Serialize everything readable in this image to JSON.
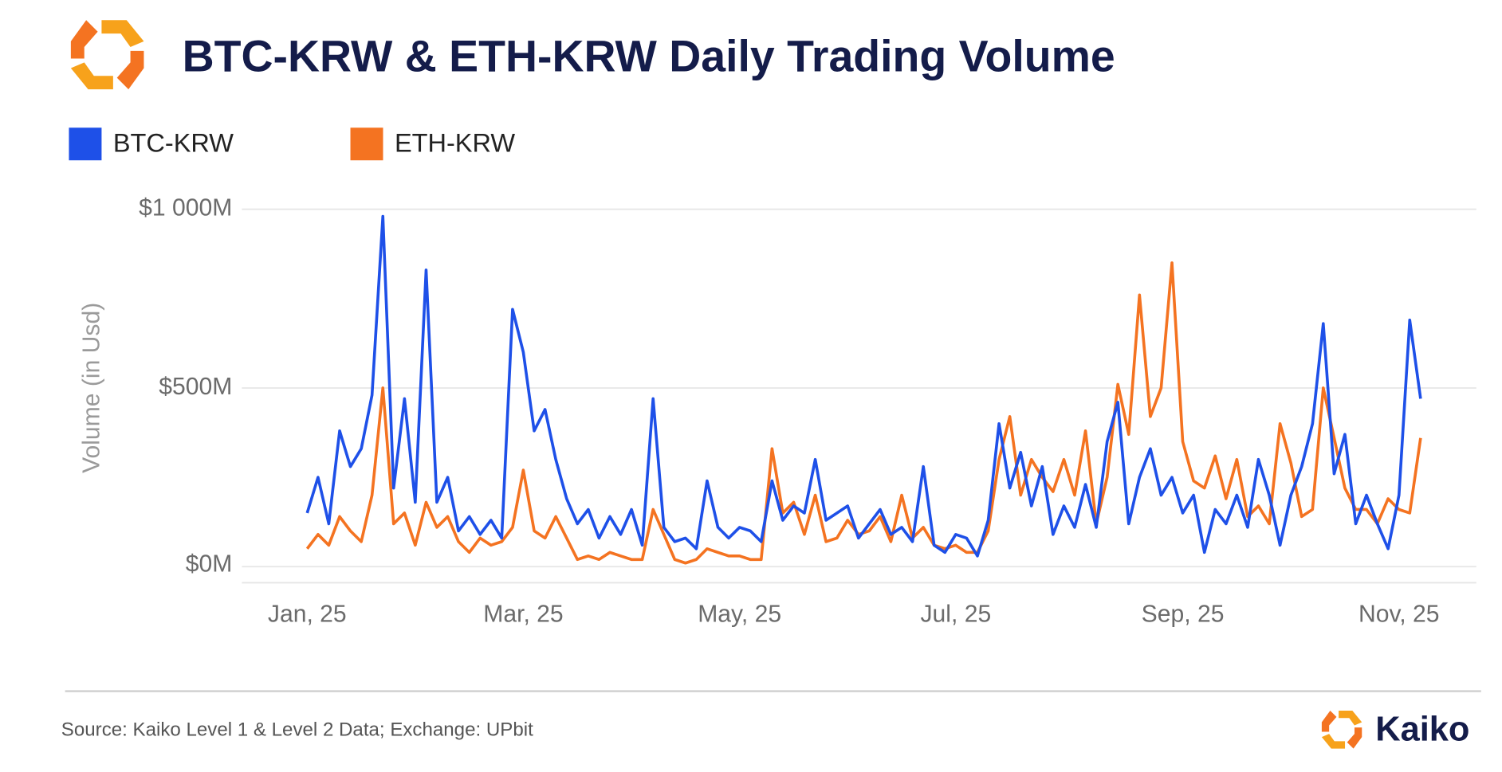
{
  "chart_data": {
    "type": "line",
    "title": "BTC-KRW & ETH-KRW Daily Trading Volume",
    "y_axis_label": "Volume (in Usd)",
    "source": "Source: Kaiko Level 1 & Level 2 Data; Exchange: UPbit",
    "brand": "Kaiko",
    "categories": [
      "Jan, 25",
      null,
      null,
      null,
      null,
      null,
      null,
      null,
      null,
      null,
      null,
      null,
      null,
      null,
      null,
      null,
      null,
      null,
      null,
      null,
      "Mar, 25",
      null,
      null,
      null,
      null,
      null,
      null,
      null,
      null,
      null,
      null,
      null,
      null,
      null,
      null,
      null,
      null,
      null,
      null,
      null,
      "May, 25",
      null,
      null,
      null,
      null,
      null,
      null,
      null,
      null,
      null,
      null,
      null,
      null,
      null,
      null,
      null,
      null,
      null,
      null,
      null,
      "Jul, 25",
      null,
      null,
      null,
      null,
      null,
      null,
      null,
      null,
      null,
      null,
      null,
      null,
      null,
      null,
      null,
      null,
      null,
      null,
      null,
      null,
      "Sep, 25",
      null,
      null,
      null,
      null,
      null,
      null,
      null,
      null,
      null,
      null,
      null,
      null,
      null,
      null,
      null,
      null,
      null,
      null,
      null,
      "Nov, 25",
      null,
      null
    ],
    "series": [
      {
        "name": "BTC-KRW",
        "color": "#1e50e8",
        "values": [
          150,
          250,
          120,
          380,
          280,
          330,
          480,
          980,
          220,
          470,
          180,
          830,
          180,
          250,
          100,
          140,
          90,
          130,
          80,
          720,
          600,
          380,
          440,
          300,
          190,
          120,
          160,
          80,
          140,
          90,
          160,
          60,
          470,
          110,
          70,
          80,
          50,
          240,
          110,
          80,
          110,
          100,
          70,
          240,
          130,
          170,
          150,
          300,
          130,
          150,
          170,
          80,
          120,
          160,
          90,
          110,
          70,
          280,
          60,
          40,
          90,
          80,
          30,
          130,
          400,
          220,
          320,
          170,
          280,
          90,
          170,
          110,
          230,
          110,
          350,
          460,
          120,
          250,
          330,
          200,
          250,
          150,
          200,
          40,
          160,
          120,
          200,
          110,
          300,
          200,
          60,
          200,
          280,
          400,
          680,
          260,
          370,
          120,
          200,
          120,
          50,
          200,
          690,
          470
        ]
      },
      {
        "name": "ETH-KRW",
        "color": "#f47321",
        "values": [
          50,
          90,
          60,
          140,
          100,
          70,
          200,
          500,
          120,
          150,
          60,
          180,
          110,
          140,
          70,
          40,
          80,
          60,
          70,
          110,
          270,
          100,
          80,
          140,
          80,
          20,
          30,
          20,
          40,
          30,
          20,
          20,
          160,
          90,
          20,
          10,
          20,
          50,
          40,
          30,
          30,
          20,
          20,
          330,
          150,
          180,
          90,
          200,
          70,
          80,
          130,
          90,
          100,
          140,
          70,
          200,
          80,
          110,
          60,
          50,
          60,
          40,
          40,
          100,
          300,
          420,
          200,
          300,
          250,
          210,
          300,
          200,
          380,
          120,
          250,
          510,
          370,
          760,
          420,
          500,
          850,
          350,
          240,
          220,
          310,
          190,
          300,
          140,
          170,
          120,
          400,
          290,
          140,
          160,
          500,
          360,
          220,
          160,
          160,
          120,
          190,
          160,
          150,
          360
        ]
      }
    ],
    "ylim": [
      -45,
      1000
    ],
    "yticks": [
      {
        "value": 0,
        "label": "$0M"
      },
      {
        "value": 500,
        "label": "$500M"
      },
      {
        "value": 1000,
        "label": "$1 000M"
      }
    ],
    "grid": true
  }
}
